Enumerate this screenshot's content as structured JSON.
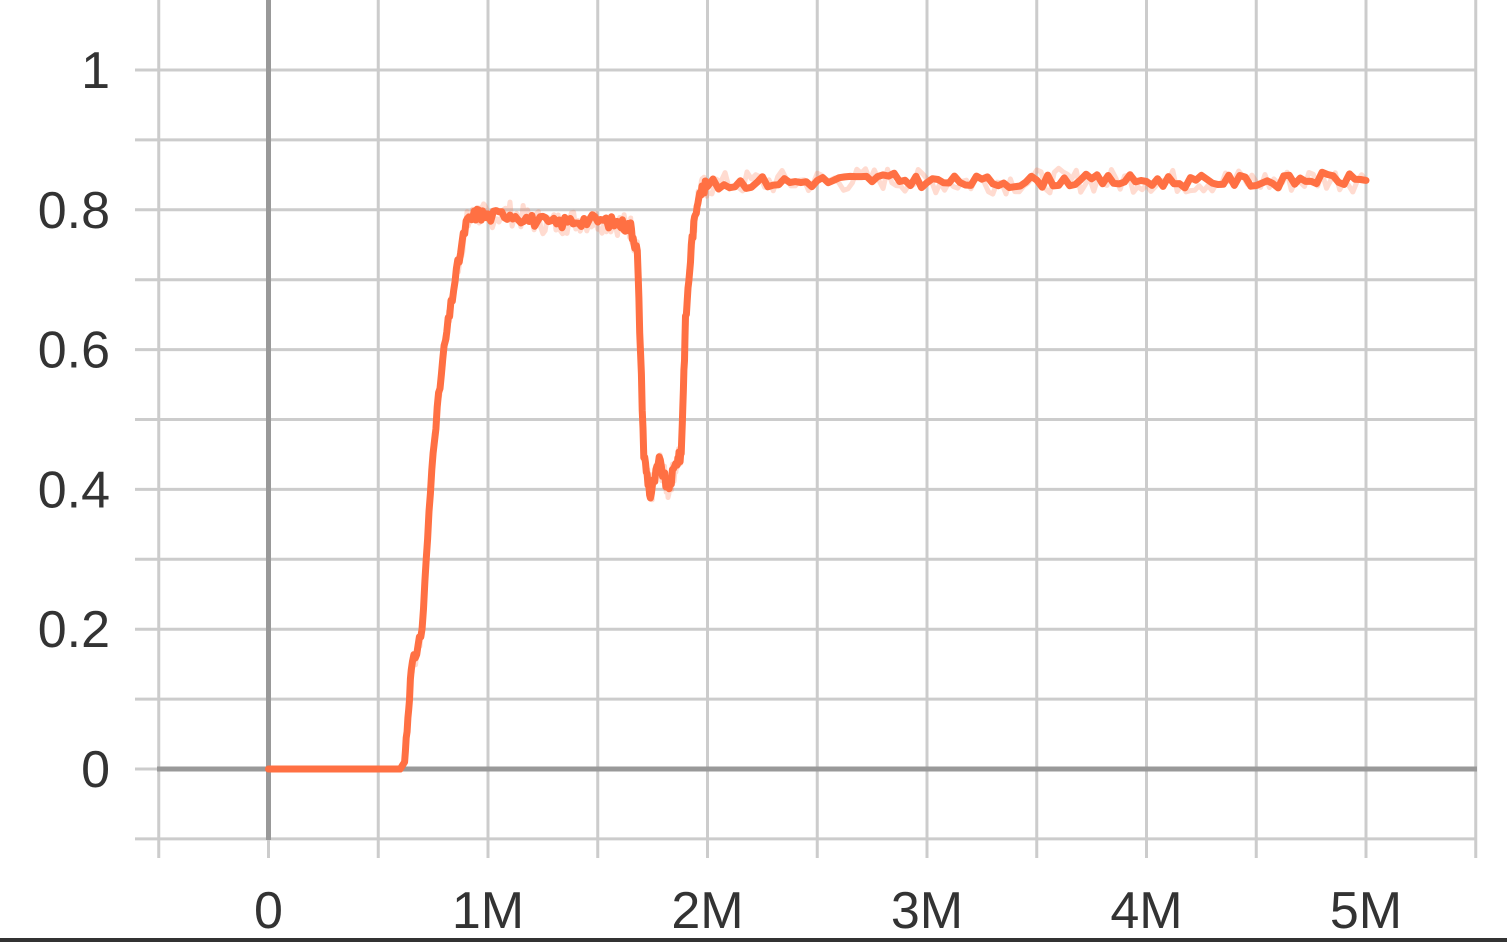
{
  "chart_data": {
    "type": "line",
    "x_ticks": [
      {
        "value": 0,
        "label": "0"
      },
      {
        "value": 1000000,
        "label": "1M"
      },
      {
        "value": 2000000,
        "label": "2M"
      },
      {
        "value": 3000000,
        "label": "3M"
      },
      {
        "value": 4000000,
        "label": "4M"
      },
      {
        "value": 5000000,
        "label": "5M"
      }
    ],
    "y_ticks": [
      {
        "value": 0,
        "label": "0"
      },
      {
        "value": 0.2,
        "label": "0.2"
      },
      {
        "value": 0.4,
        "label": "0.4"
      },
      {
        "value": 0.6,
        "label": "0.6"
      },
      {
        "value": 0.8,
        "label": "0.8"
      },
      {
        "value": 1,
        "label": "1"
      }
    ],
    "xlim": [
      -500000,
      5500000
    ],
    "ylim": [
      -0.1,
      1.1
    ],
    "grid": true,
    "color": "#ff7043",
    "series": [
      {
        "points": [
          [
            0,
            0
          ],
          [
            200000,
            0
          ],
          [
            400000,
            0
          ],
          [
            600000,
            0
          ],
          [
            620000,
            0.01
          ],
          [
            650000,
            0.14
          ],
          [
            700000,
            0.2
          ],
          [
            750000,
            0.46
          ],
          [
            800000,
            0.6
          ],
          [
            850000,
            0.7
          ],
          [
            900000,
            0.78
          ],
          [
            950000,
            0.795
          ],
          [
            1000000,
            0.79
          ],
          [
            1100000,
            0.795
          ],
          [
            1200000,
            0.785
          ],
          [
            1300000,
            0.78
          ],
          [
            1400000,
            0.785
          ],
          [
            1500000,
            0.785
          ],
          [
            1600000,
            0.78
          ],
          [
            1650000,
            0.775
          ],
          [
            1680000,
            0.74
          ],
          [
            1710000,
            0.45
          ],
          [
            1740000,
            0.39
          ],
          [
            1780000,
            0.44
          ],
          [
            1820000,
            0.4
          ],
          [
            1860000,
            0.44
          ],
          [
            1880000,
            0.45
          ],
          [
            1900000,
            0.64
          ],
          [
            1930000,
            0.76
          ],
          [
            1960000,
            0.825
          ],
          [
            2000000,
            0.835
          ],
          [
            2200000,
            0.84
          ],
          [
            2400000,
            0.84
          ],
          [
            2600000,
            0.842
          ],
          [
            2800000,
            0.845
          ],
          [
            3000000,
            0.84
          ],
          [
            3200000,
            0.84
          ],
          [
            3400000,
            0.84
          ],
          [
            3600000,
            0.842
          ],
          [
            3800000,
            0.842
          ],
          [
            4000000,
            0.842
          ],
          [
            4200000,
            0.84
          ],
          [
            4400000,
            0.842
          ],
          [
            4600000,
            0.84
          ],
          [
            4800000,
            0.845
          ],
          [
            5000000,
            0.842
          ]
        ]
      }
    ]
  }
}
